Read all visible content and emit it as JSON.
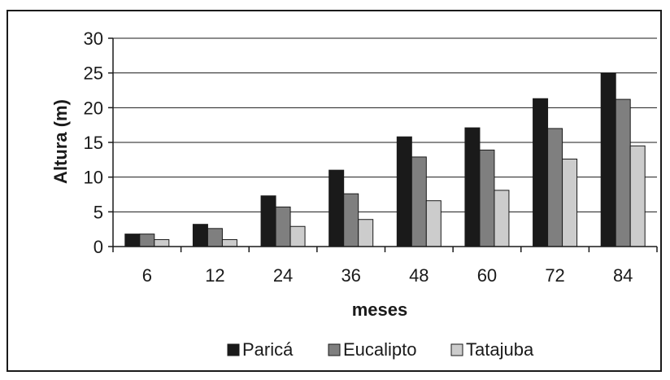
{
  "chart_data": {
    "type": "bar",
    "categories": [
      "6",
      "12",
      "24",
      "36",
      "48",
      "60",
      "72",
      "84"
    ],
    "series": [
      {
        "name": "Paricá",
        "color": "#1a1a1a",
        "values": [
          1.8,
          3.2,
          7.3,
          11.0,
          15.8,
          17.1,
          21.3,
          25.0
        ]
      },
      {
        "name": "Eucalipto",
        "color": "#7f7f7f",
        "values": [
          1.8,
          2.6,
          5.7,
          7.6,
          12.9,
          13.9,
          17.0,
          21.2
        ]
      },
      {
        "name": "Tatajuba",
        "color": "#cccccc",
        "values": [
          1.0,
          1.0,
          2.9,
          3.9,
          6.6,
          8.1,
          12.6,
          14.5
        ]
      }
    ],
    "xlabel": "meses",
    "ylabel": "Altura (m)",
    "ylim": [
      0,
      30
    ],
    "yticks": [
      "0",
      "5",
      "10",
      "15",
      "20",
      "25",
      "30"
    ],
    "grid": true,
    "legend_position": "bottom"
  }
}
